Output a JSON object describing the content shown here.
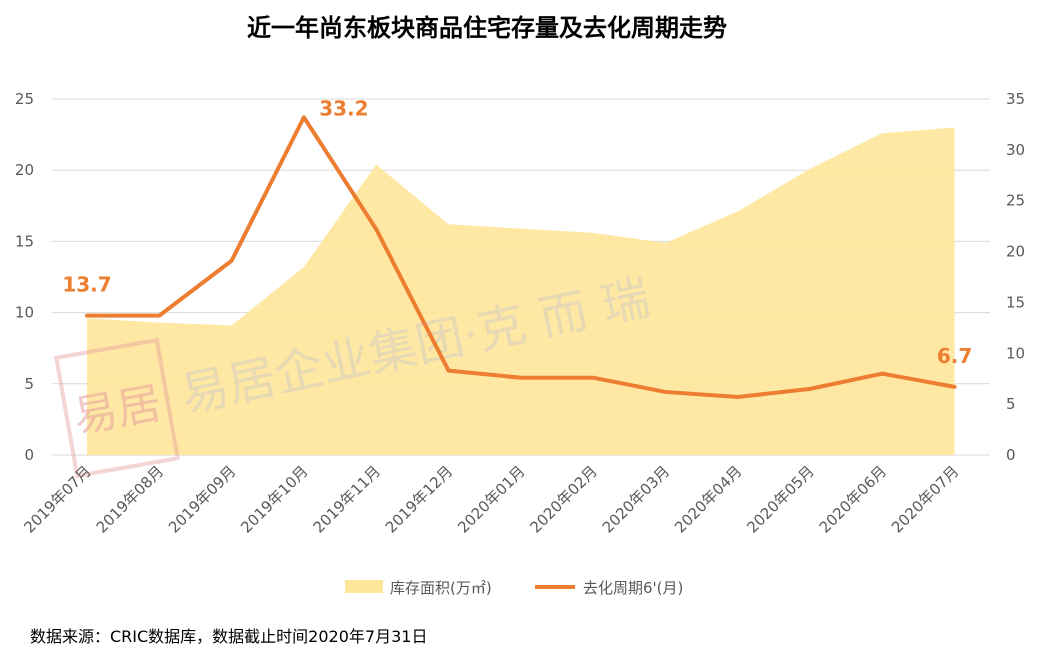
{
  "chart_data": {
    "type": "area+line",
    "title": "近一年尚东板块商品住宅存量及去化周期走势",
    "categories": [
      "2019年07月",
      "2019年08月",
      "2019年09月",
      "2019年10月",
      "2019年11月",
      "2019年12月",
      "2020年01月",
      "2020年02月",
      "2020年03月",
      "2020年04月",
      "2020年05月",
      "2020年06月",
      "2020年07月"
    ],
    "series": [
      {
        "name": "库存面积(万㎡)",
        "kind": "area",
        "axis": "left",
        "color": "#FFE699",
        "values": [
          9.6,
          9.3,
          9.1,
          13.2,
          20.4,
          16.2,
          15.9,
          15.6,
          14.9,
          17.1,
          20.1,
          22.6,
          23.0
        ]
      },
      {
        "name": "去化周期6'(月)",
        "kind": "line",
        "axis": "right",
        "color": "#ED7D31",
        "values": [
          13.7,
          13.7,
          19.1,
          33.2,
          22.2,
          8.3,
          7.6,
          7.6,
          6.2,
          5.7,
          6.5,
          8.0,
          6.7
        ]
      }
    ],
    "data_labels": [
      "13.7",
      "33.2",
      "6.7"
    ],
    "y_left": {
      "min": 0,
      "max": 25,
      "ticks": [
        "0",
        "5",
        "10",
        "15",
        "20",
        "25"
      ]
    },
    "y_right": {
      "min": 0,
      "max": 35,
      "ticks": [
        "0",
        "5",
        "10",
        "15",
        "20",
        "25",
        "30",
        "35"
      ]
    },
    "grid": true,
    "legend_position": "bottom"
  },
  "source_note": "数据来源：CRIC数据库，数据截止时间2020年7月31日",
  "watermark": {
    "stamp_text": "易居",
    "text": "易居企业集团·克 而 瑞"
  }
}
